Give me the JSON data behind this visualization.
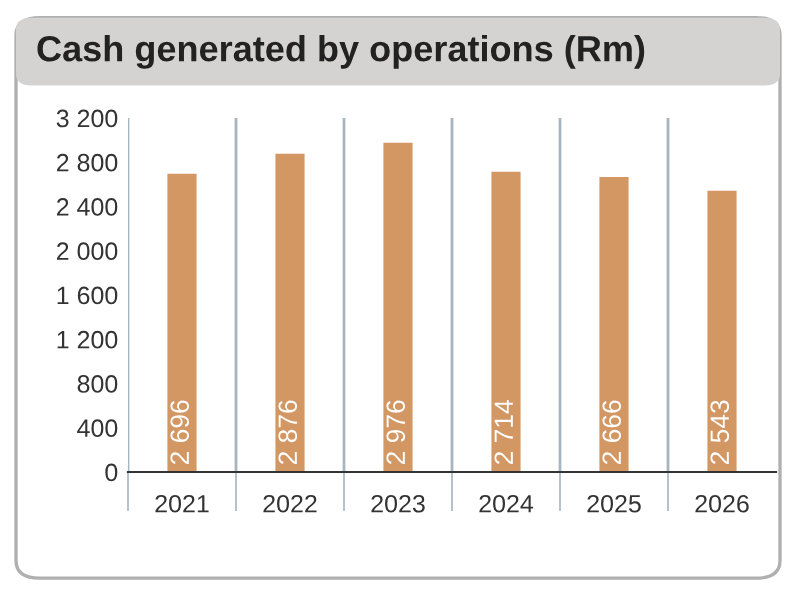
{
  "chart_data": {
    "type": "bar",
    "title": "Cash generated by operations (Rm)",
    "categories": [
      "2021",
      "2022",
      "2023",
      "2024",
      "2025",
      "2026"
    ],
    "values": [
      2696,
      2876,
      2976,
      2714,
      2666,
      2543
    ],
    "value_labels": [
      "2 696",
      "2 876",
      "2 976",
      "2 714",
      "2 666",
      "2 543"
    ],
    "color": "#d29763",
    "ylim": [
      0,
      3200
    ],
    "yticks": [
      0,
      400,
      800,
      {
        "value": 1200,
        "label": "1 200"
      },
      {
        "value": 1600,
        "label": "1 600"
      },
      {
        "value": 2000,
        "label": "2 000"
      },
      {
        "value": 2400,
        "label": "2 400"
      },
      {
        "value": 2800,
        "label": "2 800"
      },
      {
        "value": 3200,
        "label": "3 200"
      }
    ],
    "grid": "x"
  }
}
